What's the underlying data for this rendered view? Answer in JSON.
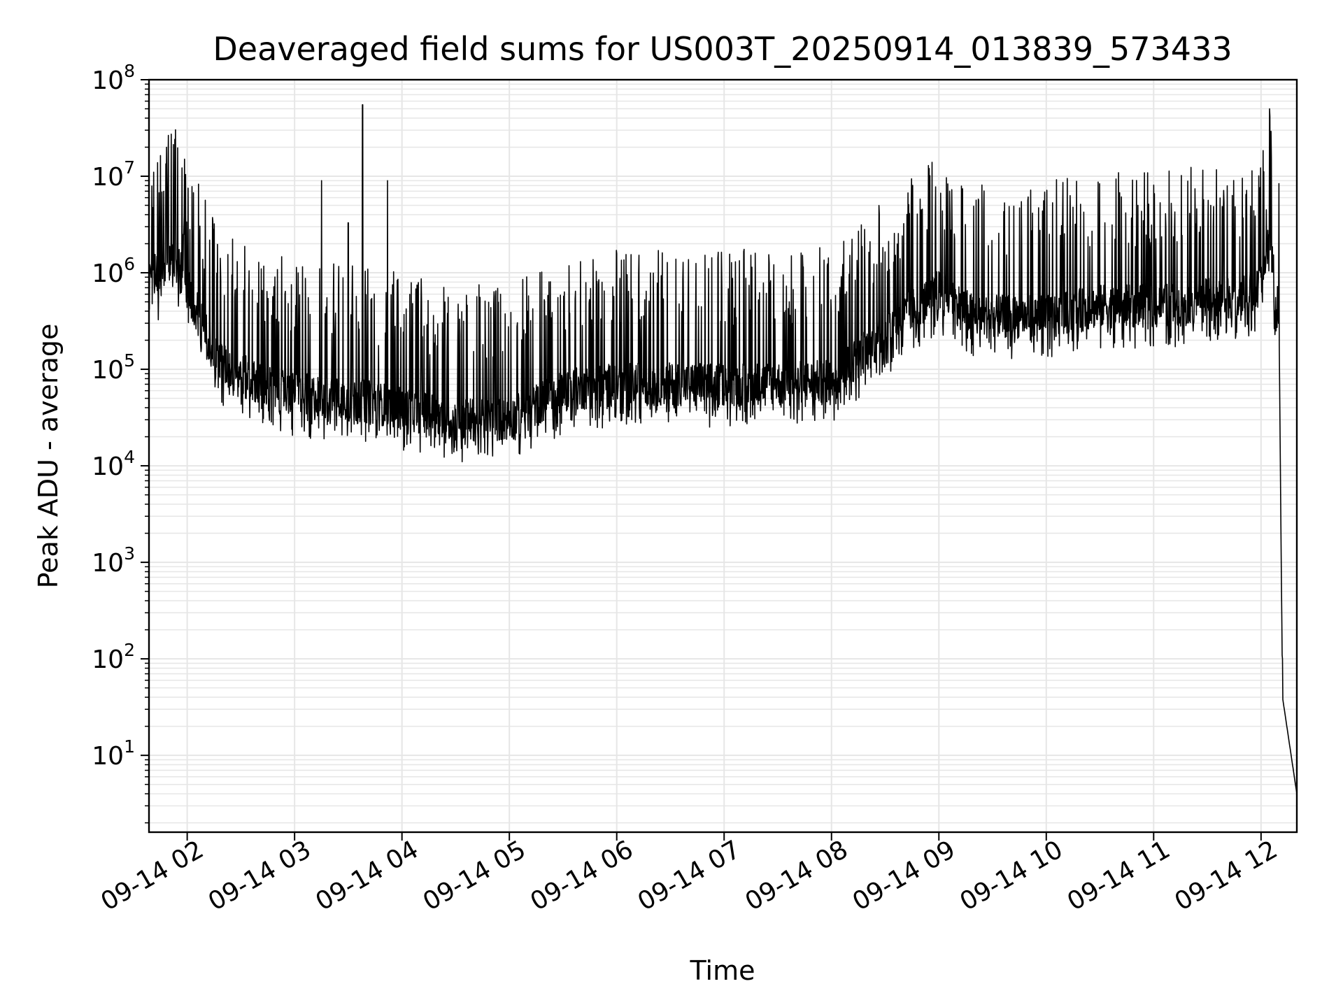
{
  "chart_data": {
    "type": "line",
    "title": "Deaveraged field sums for US003T_20250914_013839_573433",
    "xlabel": "Time",
    "ylabel": "Peak ADU - average",
    "yscale": "log",
    "xlim": [
      "2025-09-14T01:38:39",
      "2025-09-14T12:20:00"
    ],
    "ylim": [
      1.6,
      100000000
    ],
    "grid": true,
    "grid_minor_y": true,
    "line_color": "#000000",
    "grid_color": "#e6e6e6",
    "x_ticks": [
      {
        "t": "2025-09-14T02:00:00",
        "label": "09-14 02"
      },
      {
        "t": "2025-09-14T03:00:00",
        "label": "09-14 03"
      },
      {
        "t": "2025-09-14T04:00:00",
        "label": "09-14 04"
      },
      {
        "t": "2025-09-14T05:00:00",
        "label": "09-14 05"
      },
      {
        "t": "2025-09-14T06:00:00",
        "label": "09-14 06"
      },
      {
        "t": "2025-09-14T07:00:00",
        "label": "09-14 07"
      },
      {
        "t": "2025-09-14T08:00:00",
        "label": "09-14 08"
      },
      {
        "t": "2025-09-14T09:00:00",
        "label": "09-14 09"
      },
      {
        "t": "2025-09-14T10:00:00",
        "label": "09-14 10"
      },
      {
        "t": "2025-09-14T11:00:00",
        "label": "09-14 11"
      },
      {
        "t": "2025-09-14T12:00:00",
        "label": "09-14 12"
      }
    ],
    "y_ticks": [
      {
        "value": 10,
        "base": "10",
        "exp": "1"
      },
      {
        "value": 100,
        "base": "10",
        "exp": "2"
      },
      {
        "value": 1000,
        "base": "10",
        "exp": "3"
      },
      {
        "value": 10000,
        "base": "10",
        "exp": "4"
      },
      {
        "value": 100000,
        "base": "10",
        "exp": "5"
      },
      {
        "value": 1000000,
        "base": "10",
        "exp": "6"
      },
      {
        "value": 10000000,
        "base": "10",
        "exp": "7"
      },
      {
        "value": 100000000,
        "base": "10",
        "exp": "8"
      }
    ],
    "baseline_points": [
      [
        "2025-09-14T01:38:39",
        1000000
      ],
      [
        "2025-09-14T01:45:00",
        900000
      ],
      [
        "2025-09-14T01:52:00",
        1600000
      ],
      [
        "2025-09-14T02:00:00",
        700000
      ],
      [
        "2025-09-14T02:10:00",
        250000
      ],
      [
        "2025-09-14T02:20:00",
        110000
      ],
      [
        "2025-09-14T02:40:00",
        70000
      ],
      [
        "2025-09-14T03:00:00",
        55000
      ],
      [
        "2025-09-14T03:30:00",
        50000
      ],
      [
        "2025-09-14T04:00:00",
        40000
      ],
      [
        "2025-09-14T04:30:00",
        30000
      ],
      [
        "2025-09-14T05:00:00",
        30000
      ],
      [
        "2025-09-14T05:30:00",
        60000
      ],
      [
        "2025-09-14T06:00:00",
        70000
      ],
      [
        "2025-09-14T07:00:00",
        70000
      ],
      [
        "2025-09-14T08:00:00",
        75000
      ],
      [
        "2025-09-14T08:40:00",
        350000
      ],
      [
        "2025-09-14T09:00:00",
        650000
      ],
      [
        "2025-09-14T09:20:00",
        350000
      ],
      [
        "2025-09-14T10:00:00",
        350000
      ],
      [
        "2025-09-14T10:30:00",
        450000
      ],
      [
        "2025-09-14T11:00:00",
        450000
      ],
      [
        "2025-09-14T11:40:00",
        550000
      ],
      [
        "2025-09-14T12:00:00",
        650000
      ],
      [
        "2025-09-14T12:05:00",
        3000000
      ],
      [
        "2025-09-14T12:08:00",
        500000
      ],
      [
        "2025-09-14T12:10:00",
        400000
      ],
      [
        "2025-09-14T12:12:00",
        40
      ],
      [
        "2025-09-14T12:20:00",
        4
      ]
    ],
    "spikes": [
      [
        "2025-09-14T01:58:00",
        2500000
      ],
      [
        "2025-09-14T03:15:00",
        9000000
      ],
      [
        "2025-09-14T03:30:00",
        3300000
      ],
      [
        "2025-09-14T03:38:00",
        55000000
      ],
      [
        "2025-09-14T03:52:00",
        9000000
      ],
      [
        "2025-09-14T09:45:00",
        4700000
      ],
      [
        "2025-09-14T12:03:00",
        4500000
      ],
      [
        "2025-09-14T12:12:00",
        100
      ]
    ]
  }
}
